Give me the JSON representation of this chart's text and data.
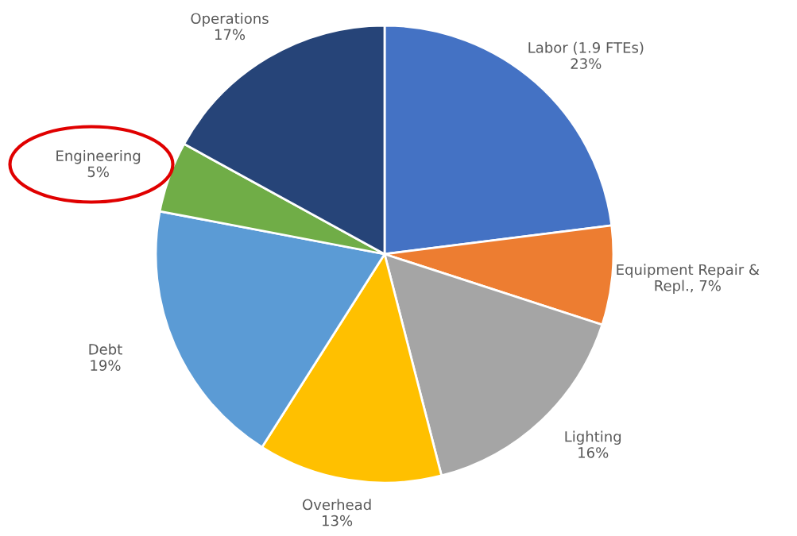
{
  "chart_data": {
    "type": "pie",
    "categories": [
      "Labor (1.9 FTEs)",
      "Equipment Repair & Repl.",
      "Lighting",
      "Overhead",
      "Debt",
      "Engineering",
      "Operations"
    ],
    "values": [
      23,
      7,
      16,
      13,
      19,
      5,
      17
    ],
    "value_labels": [
      "23%",
      "7%",
      "16%",
      "13%",
      "19%",
      "5%",
      "17%"
    ],
    "colors": [
      "#4472c4",
      "#ed7d31",
      "#a5a5a5",
      "#ffc000",
      "#5b9bd5",
      "#70ad47",
      "#264478"
    ],
    "data_labels": true,
    "legend": false
  }
}
